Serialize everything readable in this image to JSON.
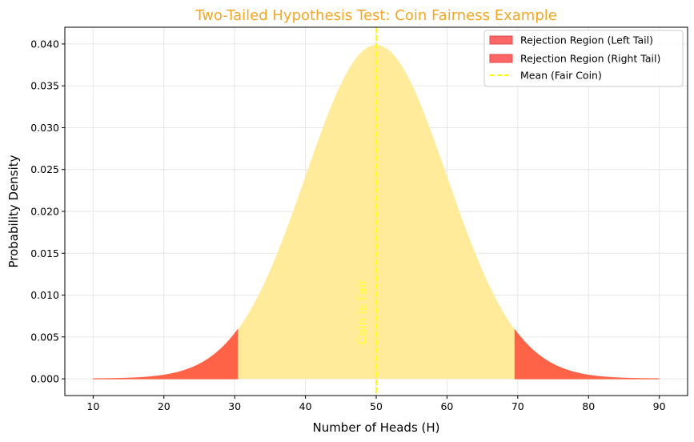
{
  "chart_data": {
    "type": "area",
    "title": "Two-Tailed Hypothesis Test: Coin Fairness Example",
    "xlabel": "Number of Heads (H)",
    "ylabel": "Probability Density",
    "xlim": [
      6,
      94
    ],
    "ylim": [
      -0.002,
      0.042
    ],
    "x_ticks": [
      10,
      20,
      30,
      40,
      50,
      60,
      70,
      80,
      90
    ],
    "y_ticks": [
      "0.000",
      "0.005",
      "0.010",
      "0.015",
      "0.020",
      "0.025",
      "0.030",
      "0.035",
      "0.040"
    ],
    "distribution": {
      "kind": "normal",
      "mean": 50,
      "sd": 10,
      "x_range": [
        10,
        90
      ]
    },
    "rejection_left": {
      "name": "Rejection Region (Left Tail)",
      "x_range": [
        10,
        30.4
      ]
    },
    "rejection_right": {
      "name": "Rejection Region (Right Tail)",
      "x_range": [
        69.6,
        90
      ]
    },
    "mean_line": {
      "name": "Mean (Fair Coin)",
      "x": 50
    },
    "annotation": {
      "text": "Coin is Fair",
      "x": 48,
      "y": 0.008
    },
    "grid": true,
    "legend_position": "top-right",
    "colors": {
      "fill": "#ffeb99",
      "rejection": "#ff6347",
      "rejection_legend": "#ff6666",
      "mean_line": "#ffff00",
      "title": "#f5a623",
      "annotation": "#ffff33"
    }
  }
}
